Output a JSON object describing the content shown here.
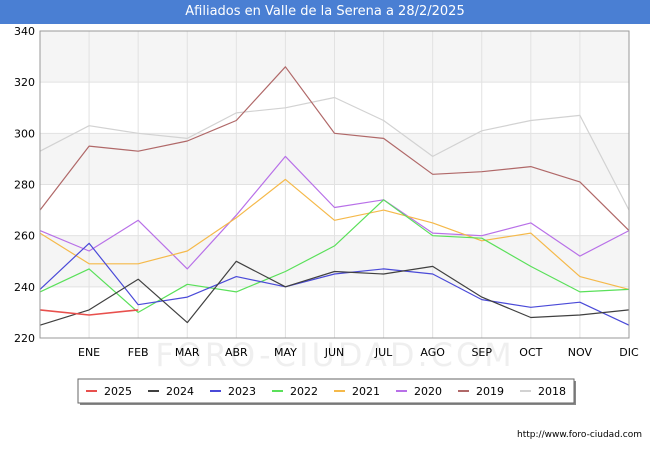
{
  "chart_data": {
    "type": "line",
    "title": "Afiliados en Valle de la Serena a 28/2/2025",
    "categories": [
      "",
      "ENE",
      "FEB",
      "MAR",
      "ABR",
      "MAY",
      "JUN",
      "JUL",
      "AGO",
      "SEP",
      "OCT",
      "NOV",
      "DIC"
    ],
    "ylim": [
      220,
      340
    ],
    "yticks": [
      220,
      240,
      260,
      280,
      300,
      320,
      340
    ],
    "grid": true,
    "legend_position": "bottom",
    "series": [
      {
        "name": "2025",
        "color": "#e8504d",
        "values": [
          231,
          229,
          231,
          null,
          null,
          null,
          null,
          null,
          null,
          null,
          null,
          null,
          null
        ]
      },
      {
        "name": "2024",
        "color": "#404040",
        "values": [
          225,
          231,
          243,
          226,
          250,
          240,
          246,
          245,
          248,
          236,
          228,
          229,
          231
        ]
      },
      {
        "name": "2023",
        "color": "#4a4ad8",
        "values": [
          239,
          257,
          233,
          236,
          244,
          240,
          245,
          247,
          245,
          235,
          232,
          234,
          225
        ]
      },
      {
        "name": "2022",
        "color": "#5ae05a",
        "values": [
          238,
          247,
          230,
          241,
          238,
          246,
          256,
          274,
          260,
          259,
          248,
          238,
          239
        ]
      },
      {
        "name": "2021",
        "color": "#f5b94a",
        "values": [
          261,
          249,
          249,
          254,
          267,
          282,
          266,
          270,
          265,
          258,
          261,
          244,
          239
        ]
      },
      {
        "name": "2020",
        "color": "#b870e8",
        "values": [
          262,
          254,
          266,
          247,
          268,
          291,
          271,
          274,
          261,
          260,
          265,
          252,
          262
        ]
      },
      {
        "name": "2019",
        "color": "#b06868",
        "values": [
          270,
          295,
          293,
          297,
          305,
          326,
          300,
          298,
          284,
          285,
          287,
          281,
          262
        ]
      },
      {
        "name": "2018",
        "color": "#d2d2d2",
        "values": [
          293,
          303,
          300,
          298,
          308,
          310,
          314,
          305,
          291,
          301,
          305,
          307,
          270
        ]
      }
    ],
    "watermark": "FORO-CIUDAD.COM"
  },
  "source_text": "http://www.foro-ciudad.com"
}
